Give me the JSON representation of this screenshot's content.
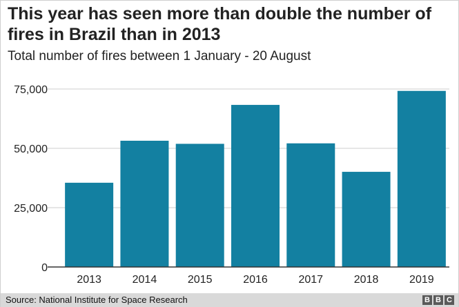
{
  "title": "This year has seen more than double the number of fires in Brazil than in 2013",
  "subtitle": "Total number of fires between 1 January - 20 August",
  "source": "Source: National Institute for Space Research",
  "logo": [
    "B",
    "B",
    "C"
  ],
  "colors": {
    "bar": "#1380A1",
    "grid": "#cccccc",
    "axis": "#333333"
  },
  "chart_data": {
    "type": "bar",
    "categories": [
      "2013",
      "2014",
      "2015",
      "2016",
      "2017",
      "2018",
      "2019"
    ],
    "values": [
      35500,
      53200,
      51900,
      68300,
      52100,
      40100,
      74200
    ],
    "ylim": [
      0,
      75000
    ],
    "yticks": [
      0,
      25000,
      50000,
      75000
    ],
    "ytick_labels": [
      "0",
      "25,000",
      "50,000",
      "75,000"
    ],
    "grid": true
  }
}
